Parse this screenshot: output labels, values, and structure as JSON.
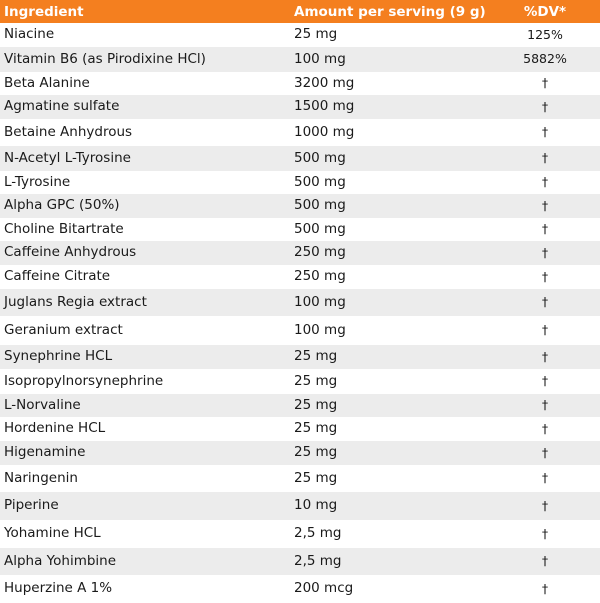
{
  "header": {
    "ingredient": "Ingredient",
    "amount": "Amount per serving (9 g)",
    "dv": "%DV*"
  },
  "rows": [
    {
      "name": "Niacine",
      "amount": "25 mg",
      "dv": "125%"
    },
    {
      "name": "Vitamin B6 (as Pirodixine HCl)",
      "amount": "100 mg",
      "dv": "5882%"
    },
    {
      "name": "Beta Alanine",
      "amount": "3200 mg",
      "dv": "†"
    },
    {
      "name": "Agmatine sulfate",
      "amount": "1500 mg",
      "dv": "†"
    },
    {
      "name": "Betaine Anhydrous",
      "amount": "1000 mg",
      "dv": "†"
    },
    {
      "name": "N-Acetyl L-Tyrosine",
      "amount": "500 mg",
      "dv": "†"
    },
    {
      "name": "L-Tyrosine",
      "amount": "500 mg",
      "dv": "†"
    },
    {
      "name": "Alpha GPC (50%)",
      "amount": "500 mg",
      "dv": "†"
    },
    {
      "name": "Choline Bitartrate",
      "amount": "500 mg",
      "dv": "†"
    },
    {
      "name": "Caffeine Anhydrous",
      "amount": "250 mg",
      "dv": "†"
    },
    {
      "name": "Caffeine Citrate",
      "amount": "250 mg",
      "dv": "†"
    },
    {
      "name": "Juglans Regia extract",
      "amount": "100 mg",
      "dv": "†"
    },
    {
      "name": "Geranium extract",
      "amount": "100 mg",
      "dv": "†"
    },
    {
      "name": "Synephrine HCL",
      "amount": "25 mg",
      "dv": "†"
    },
    {
      "name": "Isopropylnorsynephrine",
      "amount": "25 mg",
      "dv": "†"
    },
    {
      "name": "L-Norvaline",
      "amount": "25 mg",
      "dv": "†"
    },
    {
      "name": "Hordenine HCL",
      "amount": "25 mg",
      "dv": "†"
    },
    {
      "name": "Higenamine",
      "amount": "25 mg",
      "dv": "†"
    },
    {
      "name": "Naringenin",
      "amount": "25 mg",
      "dv": "†"
    },
    {
      "name": "Piperine",
      "amount": "10 mg",
      "dv": "†"
    },
    {
      "name": "Yohamine HCL",
      "amount": "2,5 mg",
      "dv": "†"
    },
    {
      "name": "Alpha Yohimbine",
      "amount": "2,5 mg",
      "dv": "†"
    },
    {
      "name": "Huperzine A 1%",
      "amount": "200 mcg",
      "dv": "†"
    }
  ],
  "colors": {
    "header_bg": "#f47f1f",
    "header_text": "#ffffff",
    "stripe": "#ececec"
  }
}
